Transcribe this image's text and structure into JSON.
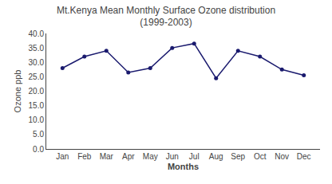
{
  "chart_data": {
    "type": "line",
    "title": "Mt.Kenya Mean Monthly Surface Ozone distribution",
    "subtitle": "(1999-2003)",
    "x_label": "Months",
    "y_label": "Ozone ppb",
    "categories": [
      "Jan",
      "Feb",
      "Mar",
      "Apr",
      "May",
      "Jun",
      "Jul",
      "Aug",
      "Sep",
      "Oct",
      "Nov",
      "Dec"
    ],
    "values": [
      28.0,
      32.0,
      34.0,
      26.5,
      28.0,
      35.0,
      36.5,
      24.5,
      34.0,
      32.0,
      27.5,
      25.5
    ],
    "color": "#1a1a6e",
    "marker": "circle",
    "ylim": [
      0,
      40.0
    ],
    "yticks": [
      {
        "value": 0,
        "label": "0.0"
      },
      {
        "value": 5,
        "label": "5.0"
      },
      {
        "value": 10,
        "label": "10.0"
      },
      {
        "value": 15,
        "label": "15.0"
      },
      {
        "value": 20,
        "label": "20.0"
      },
      {
        "value": 25,
        "label": "25.0"
      },
      {
        "value": 30,
        "label": "30.0"
      },
      {
        "value": 35,
        "label": "35.0"
      },
      {
        "value": 40,
        "label": "40.0"
      }
    ],
    "grid": false
  }
}
